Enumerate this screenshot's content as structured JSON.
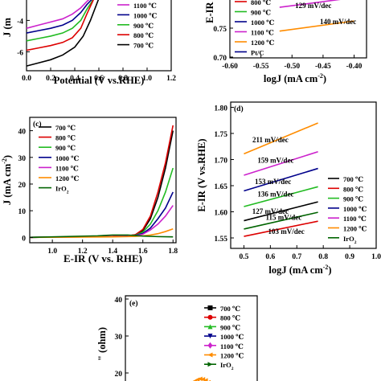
{
  "chart_data": [
    {
      "panel": "(a)",
      "type": "line",
      "xlabel": "Potential (V vs.RHE)",
      "ylabel": "J (m",
      "xlim": [
        0.0,
        1.2
      ],
      "ylim": [
        -7.2,
        -2.6
      ],
      "xticks": [
        "0.0",
        "0.2",
        "0.4",
        "0.6",
        "0.8",
        "1.0",
        "1.2"
      ],
      "yticks": [
        "-4",
        "-6"
      ],
      "legend_visible": [
        "1100 ℃",
        "1000 ℃",
        "900 ℃",
        "800 ℃",
        "700 ℃"
      ],
      "series": [
        {
          "name": "1100 ℃",
          "color": "#cc22cc",
          "x": [
            0.0,
            0.1,
            0.2,
            0.3,
            0.38,
            0.45,
            0.5,
            0.53
          ],
          "y": [
            -4.5,
            -4.3,
            -4.1,
            -3.9,
            -3.6,
            -3.2,
            -2.8,
            -2.6
          ]
        },
        {
          "name": "1000 ℃",
          "color": "#00008b",
          "x": [
            0.0,
            0.1,
            0.2,
            0.3,
            0.38,
            0.45,
            0.5,
            0.55
          ],
          "y": [
            -4.8,
            -4.65,
            -4.5,
            -4.3,
            -4.0,
            -3.5,
            -3.0,
            -2.6
          ]
        },
        {
          "name": "900 ℃",
          "color": "#22bb22",
          "x": [
            0.0,
            0.1,
            0.2,
            0.3,
            0.38,
            0.45,
            0.5,
            0.56
          ],
          "y": [
            -5.3,
            -5.15,
            -5.0,
            -4.8,
            -4.5,
            -4.0,
            -3.3,
            -2.6
          ]
        },
        {
          "name": "800 ℃",
          "color": "#dd0000",
          "x": [
            0.0,
            0.1,
            0.2,
            0.3,
            0.38,
            0.45,
            0.5,
            0.56
          ],
          "y": [
            -5.9,
            -5.75,
            -5.6,
            -5.4,
            -5.1,
            -4.5,
            -3.6,
            -2.6
          ]
        },
        {
          "name": "700 ℃",
          "color": "#000000",
          "x": [
            0.0,
            0.1,
            0.2,
            0.3,
            0.4,
            0.47,
            0.53,
            0.6
          ],
          "y": [
            -6.9,
            -6.7,
            -6.5,
            -6.2,
            -5.7,
            -5.0,
            -4.0,
            -2.6
          ]
        }
      ]
    },
    {
      "panel": "(b)",
      "type": "line",
      "xlabel": "logJ (mA cm",
      "xlabel_sup": "-2",
      "xlabel_tail": ")",
      "ylabel": "E-IR (",
      "xlim": [
        -0.6,
        -0.38
      ],
      "ylim": [
        0.7,
        0.8
      ],
      "xticks": [
        "-0.60",
        "-0.55",
        "-0.50",
        "-0.45",
        "-0.40"
      ],
      "yticks": [
        "0.70",
        "0.75"
      ],
      "legend_visible": [
        "800 ℃",
        "900 ℃",
        "1000 ℃",
        "1100 ℃",
        "1200 ℃",
        "Pt/C"
      ],
      "annotations": [
        {
          "text": "129 mV/dec",
          "color": "#cc22cc",
          "x": -0.495,
          "y": 0.784
        },
        {
          "text": "140 mV/dec",
          "color": "#ff8c00",
          "x": -0.455,
          "y": 0.757
        }
      ],
      "series": [
        {
          "name": "1100 ℃",
          "color": "#cc22cc",
          "x": [
            -0.52,
            -0.41
          ],
          "y": [
            0.785,
            0.8
          ]
        },
        {
          "name": "1200 ℃",
          "color": "#ff8c00",
          "x": [
            -0.52,
            -0.4
          ],
          "y": [
            0.745,
            0.762
          ]
        }
      ]
    },
    {
      "panel": "(c)",
      "type": "line",
      "xlabel": "E-IR  (V vs. RHE)",
      "ylabel": "J (mA cm",
      "ylabel_sup": "-2",
      "ylabel_tail": ")",
      "xlim": [
        0.85,
        1.82
      ],
      "ylim": [
        -2,
        45
      ],
      "xticks": [
        "1.0",
        "1.2",
        "1.4",
        "1.6",
        "1.8"
      ],
      "xtick_values": [
        1.0,
        1.2,
        1.4,
        1.6,
        1.8
      ],
      "yticks": [
        "0",
        "10",
        "20",
        "30",
        "40"
      ],
      "ytick_values": [
        0,
        10,
        20,
        30,
        40
      ],
      "legend": [
        "700 ℃",
        "800 ℃",
        "900 ℃",
        "1000 ℃",
        "1100 ℃",
        "1200 ℃",
        "IrO2"
      ],
      "series": [
        {
          "name": "700 ℃",
          "color": "#000000",
          "x": [
            0.85,
            1.4,
            1.5,
            1.55,
            1.6,
            1.65,
            1.7,
            1.75,
            1.8
          ],
          "y": [
            0,
            0.4,
            0.6,
            1.0,
            2.5,
            7,
            15,
            26,
            40
          ]
        },
        {
          "name": "800 ℃",
          "color": "#dd0000",
          "x": [
            0.85,
            1.4,
            1.5,
            1.55,
            1.6,
            1.65,
            1.7,
            1.75,
            1.8
          ],
          "y": [
            0,
            0.4,
            0.6,
            1.0,
            3,
            8,
            17,
            28,
            42
          ]
        },
        {
          "name": "900 ℃",
          "color": "#22bb22",
          "x": [
            0.85,
            1.4,
            1.5,
            1.55,
            1.6,
            1.65,
            1.7,
            1.75,
            1.8
          ],
          "y": [
            0,
            0.3,
            0.5,
            0.8,
            2,
            5,
            10,
            17,
            26
          ]
        },
        {
          "name": "1000 ℃",
          "color": "#00008b",
          "x": [
            0.85,
            1.4,
            1.5,
            1.55,
            1.6,
            1.65,
            1.7,
            1.75,
            1.8
          ],
          "y": [
            0,
            0.3,
            0.5,
            0.7,
            1.5,
            3.5,
            7,
            11,
            17
          ]
        },
        {
          "name": "1100 ℃",
          "color": "#cc22cc",
          "x": [
            0.85,
            1.4,
            1.5,
            1.55,
            1.6,
            1.65,
            1.7,
            1.75,
            1.8
          ],
          "y": [
            0,
            0.3,
            0.4,
            0.6,
            1.2,
            2.8,
            5,
            8,
            12
          ]
        },
        {
          "name": "1200 ℃",
          "color": "#ff8c00",
          "x": [
            0.85,
            1.4,
            1.5,
            1.55,
            1.6,
            1.65,
            1.7,
            1.75,
            1.8
          ],
          "y": [
            0,
            0.2,
            0.3,
            0.4,
            0.6,
            0.9,
            1.4,
            2.2,
            3.2
          ]
        },
        {
          "name": "IrO2",
          "color": "#006400",
          "x": [
            0.85,
            1.3,
            1.4,
            1.5,
            1.6,
            1.7,
            1.8
          ],
          "y": [
            0,
            0.6,
            0.9,
            0.9,
            0.5,
            0.3,
            0.2
          ]
        }
      ]
    },
    {
      "panel": "(d)",
      "type": "line",
      "xlabel": "logJ (mA cm",
      "xlabel_sup": "-2",
      "xlabel_tail": ")",
      "ylabel": "E-IR (V vs.RHE)",
      "xlim": [
        0.45,
        1.0
      ],
      "ylim": [
        1.53,
        1.81
      ],
      "xticks": [
        "0.5",
        "0.6",
        "0.7",
        "0.8",
        "0.9",
        "1.0"
      ],
      "xtick_values": [
        0.5,
        0.6,
        0.7,
        0.8,
        0.9,
        1.0
      ],
      "yticks": [
        "1.55",
        "1.60",
        "1.65",
        "1.70",
        "1.75",
        "1.80"
      ],
      "ytick_values": [
        1.55,
        1.6,
        1.65,
        1.7,
        1.75,
        1.8
      ],
      "legend": [
        "700 ℃",
        "800 ℃",
        "900 ℃",
        "1000 ℃",
        "1100 ℃",
        "1200 ℃",
        "IrO2"
      ],
      "annotations": [
        {
          "text": "211 mV/dec",
          "color": "#ff8c00",
          "x": 0.6,
          "y": 1.733
        },
        {
          "text": "159 mV/dec",
          "color": "#cc22cc",
          "x": 0.62,
          "y": 1.694
        },
        {
          "text": "153 mV/dec",
          "color": "#00008b",
          "x": 0.61,
          "y": 1.653
        },
        {
          "text": "136 mV/dec",
          "color": "#22bb22",
          "x": 0.62,
          "y": 1.629
        },
        {
          "text": "127 mV/dec",
          "color": "#000000",
          "x": 0.6,
          "y": 1.596
        },
        {
          "text": "115 mV/dec",
          "color": "#006400",
          "x": 0.65,
          "y": 1.585
        },
        {
          "text": "103 mV/dec",
          "color": "#dd0000",
          "x": 0.66,
          "y": 1.558
        }
      ],
      "series": [
        {
          "name": "1200 ℃",
          "color": "#ff8c00",
          "x": [
            0.5,
            0.78
          ],
          "y": [
            1.711,
            1.77
          ]
        },
        {
          "name": "1100 ℃",
          "color": "#cc22cc",
          "x": [
            0.5,
            0.78
          ],
          "y": [
            1.67,
            1.715
          ]
        },
        {
          "name": "1000 ℃",
          "color": "#00008b",
          "x": [
            0.5,
            0.78
          ],
          "y": [
            1.64,
            1.683
          ]
        },
        {
          "name": "900 ℃",
          "color": "#22bb22",
          "x": [
            0.5,
            0.78
          ],
          "y": [
            1.61,
            1.648
          ]
        },
        {
          "name": "700 ℃",
          "color": "#000000",
          "x": [
            0.5,
            0.78
          ],
          "y": [
            1.583,
            1.619
          ]
        },
        {
          "name": "IrO2",
          "color": "#006400",
          "x": [
            0.5,
            0.78
          ],
          "y": [
            1.567,
            1.599
          ]
        },
        {
          "name": "800 ℃",
          "color": "#dd0000",
          "x": [
            0.5,
            0.78
          ],
          "y": [
            1.553,
            1.582
          ]
        }
      ]
    },
    {
      "panel": "(e)",
      "type": "scatter",
      "ylabel": "\" (ohm)",
      "ylim": [
        0,
        40
      ],
      "yticks": [
        "20",
        "30",
        "40"
      ],
      "ytick_values": [
        20,
        30,
        40
      ],
      "legend": [
        "700 ℃",
        "800 ℃",
        "900 ℃",
        "1000 ℃",
        "1100 ℃",
        "1200 ℃",
        "IrO2"
      ],
      "series": [
        {
          "name": "1200 ℃",
          "color": "#ff8c00",
          "x": [
            0.2,
            0.4,
            0.6,
            0.8,
            1.0,
            1.2,
            1.4,
            1.6,
            1.8
          ],
          "y": [
            16.3,
            17.2,
            17.8,
            18.2,
            18.4,
            18.3,
            18.0,
            17.5,
            16.8
          ]
        }
      ]
    }
  ],
  "legend_markers": {
    "700 ℃": "square",
    "800 ℃": "circle",
    "900 ℃": "triangle-up",
    "1000 ℃": "triangle-down",
    "1100 ℃": "diamond",
    "1200 ℃": "triangle-left",
    "IrO2": "triangle-right"
  },
  "colors": {
    "700 ℃": "#000000",
    "800 ℃": "#dd0000",
    "900 ℃": "#22bb22",
    "1000 ℃": "#00008b",
    "1100 ℃": "#cc22cc",
    "1200 ℃": "#ff8c00",
    "IrO2": "#006400",
    "Pt/C": "#00008b"
  }
}
